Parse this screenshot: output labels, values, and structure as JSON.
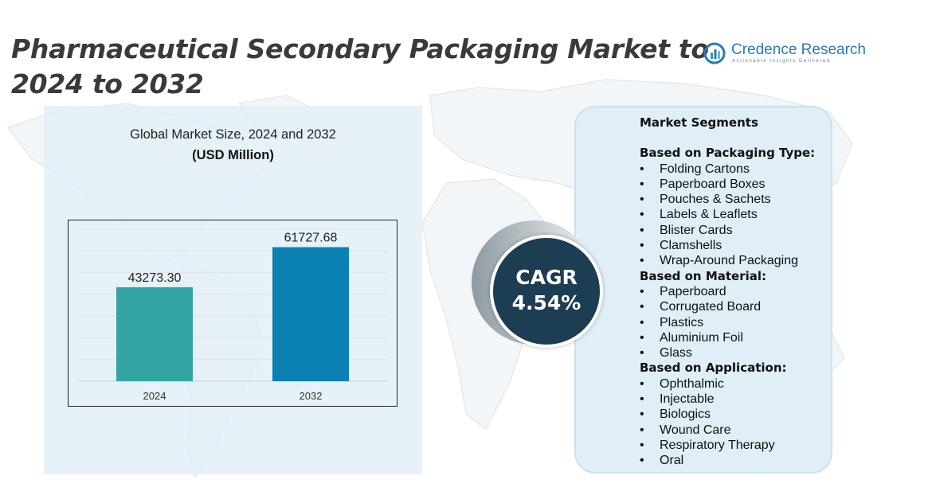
{
  "header": {
    "title": "Pharmaceutical Secondary Packaging Market to 2024 to 2032"
  },
  "brand": {
    "name": "Credence Research",
    "tagline": "Actionable Insights Delivered",
    "icon": "credence-logo-icon"
  },
  "colors": {
    "bar_2024": "#33a3a3",
    "bar_2032": "#0a80b3",
    "cagr_circle": "#1c3d52",
    "panel": "#dfeef7"
  },
  "chart_data": {
    "type": "bar",
    "title": "Global Market Size, 2024 and 2032",
    "subtitle": "(USD Million)",
    "categories": [
      "2024",
      "2032"
    ],
    "values": [
      43273.3,
      61727.68
    ],
    "value_labels": [
      "43273.30",
      "61727.68"
    ],
    "ylim": [
      0,
      70000
    ],
    "grid": true,
    "legend": "none"
  },
  "cagr": {
    "label": "CAGR",
    "value": "4.54%"
  },
  "segments": {
    "title": "Market Segments",
    "groups": [
      {
        "heading": "Based on Packaging Type:",
        "items": [
          "Folding Cartons",
          "Paperboard Boxes",
          "Pouches & Sachets",
          "Labels & Leaflets",
          "Blister Cards",
          "Clamshells",
          "Wrap-Around Packaging"
        ]
      },
      {
        "heading": "Based on Material:",
        "items": [
          "Paperboard",
          "Corrugated Board",
          "Plastics",
          "Aluminium Foil",
          "Glass"
        ]
      },
      {
        "heading": "Based on Application:",
        "items": [
          "Ophthalmic",
          "Injectable",
          "Biologics",
          "Wound Care",
          "Respiratory Therapy",
          "Oral"
        ]
      }
    ]
  }
}
